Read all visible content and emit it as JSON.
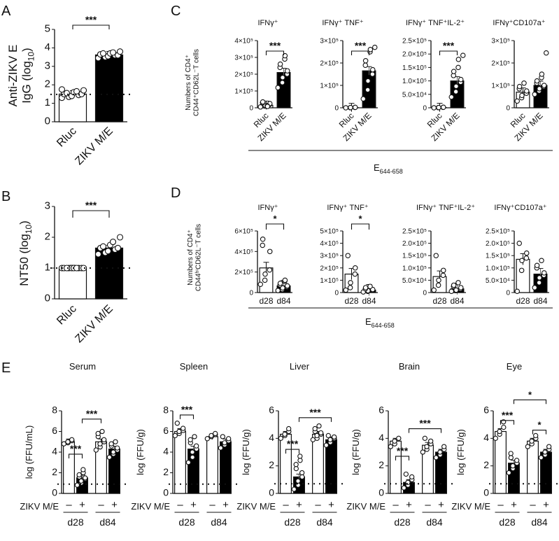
{
  "figure": {
    "panel_letters": [
      "A",
      "B",
      "C",
      "D",
      "E"
    ],
    "epitope_label": "E",
    "epitope_sub": "644-658",
    "sig3": "***",
    "sig1": "*",
    "row_label": "ZIKV M/E",
    "minus": "–",
    "plus": "+",
    "day_labels": [
      "d28",
      "d84"
    ]
  },
  "chart_data": [
    {
      "id": "A",
      "type": "bar",
      "ylabel_main": "Anti-ZIKV E",
      "ylabel_sub": "IgG (log",
      "ylabel_subscript": "10",
      "ylabel_close": ")",
      "categories": [
        "Rluc",
        "ZIKV M/E"
      ],
      "values": [
        1.5,
        3.62
      ],
      "filled": [
        false,
        true
      ],
      "points": [
        [
          1.3,
          1.35,
          1.4,
          1.45,
          1.5,
          1.5,
          1.55,
          1.6,
          1.65,
          1.7,
          1.75
        ],
        [
          3.45,
          3.5,
          3.55,
          3.6,
          3.6,
          3.65,
          3.7,
          3.7,
          3.75,
          3.8
        ]
      ],
      "ylim": [
        0,
        5
      ],
      "yticks": [
        "0",
        "1",
        "2",
        "3",
        "4",
        "5"
      ],
      "ytick_values": [
        0,
        1,
        2,
        3,
        4,
        5
      ],
      "dotted_line": 1.48,
      "sig": "***"
    },
    {
      "id": "B",
      "type": "bar",
      "ylabel_main": "NT50 (log",
      "ylabel_subscript": "10",
      "ylabel_close": ")",
      "categories": [
        "Rluc",
        "ZIKV M/E"
      ],
      "values": [
        1.0,
        1.65
      ],
      "filled": [
        false,
        true
      ],
      "points": [
        [
          1.0,
          1.0,
          1.0,
          1.0,
          1.0,
          1.0,
          1.0,
          1.0,
          1.0,
          1.0
        ],
        [
          1.45,
          1.5,
          1.55,
          1.6,
          1.65,
          1.65,
          1.7,
          1.75,
          1.85,
          2.0
        ]
      ],
      "ylim": [
        0,
        3
      ],
      "yticks": [
        "0",
        "1",
        "2",
        "3"
      ],
      "ytick_values": [
        0,
        1,
        2,
        3
      ],
      "dotted_line": 1.0,
      "sig": "***"
    },
    {
      "id": "C",
      "type": "bar",
      "group": "C",
      "shared_ylabel_1": "Numbers of CD4⁺",
      "shared_ylabel_2": "CD44⁺CD62L⁻T cells",
      "panels": [
        {
          "title": "IFNγ⁺",
          "categories": [
            "Rluc",
            "ZIKV M/E"
          ],
          "values": [
            15000,
            210000
          ],
          "filled": [
            false,
            true
          ],
          "points": [
            [
              5000,
              10000,
              15000,
              20000,
              25000,
              30000,
              35000,
              12000,
              8000
            ],
            [
              120000,
              150000,
              180000,
              200000,
              220000,
              240000,
              260000,
              290000,
              310000
            ]
          ],
          "ylim": [
            0,
            400000
          ],
          "ytick_values": [
            0,
            100000,
            200000,
            300000,
            400000
          ],
          "yticks": [
            "0",
            "1×10⁵",
            "2×10⁵",
            "3×10⁵",
            "4×10⁵"
          ],
          "sig": "***"
        },
        {
          "title": "IFNγ⁺ TNF⁺",
          "categories": [
            "Rluc",
            "ZIKV M/E"
          ],
          "values": [
            1000,
            165000
          ],
          "filled": [
            false,
            true
          ],
          "points": [
            [
              0,
              500,
              1000,
              1500,
              2000
            ],
            [
              40000,
              80000,
              120000,
              150000,
              170000,
              190000,
              210000,
              250000,
              260000,
              270000
            ]
          ],
          "ylim": [
            0,
            300000
          ],
          "ytick_values": [
            0,
            100000,
            200000,
            300000
          ],
          "yticks": [
            "0",
            "1×10⁵",
            "2×10⁵",
            "3×10⁵"
          ],
          "sig": "***"
        },
        {
          "title": "IFNγ⁺ TNF⁺IL-2⁺",
          "categories": [
            "Rluc",
            "ZIKV M/E"
          ],
          "values": [
            1000,
            100000
          ],
          "filled": [
            false,
            true
          ],
          "points": [
            [
              0,
              500,
              1000,
              1500,
              2000
            ],
            [
              40000,
              60000,
              80000,
              95000,
              105000,
              120000,
              135000,
              150000,
              180000,
              195000
            ]
          ],
          "ylim": [
            0,
            250000
          ],
          "ytick_values": [
            0,
            50000,
            100000,
            150000,
            200000,
            250000
          ],
          "yticks": [
            "0",
            "5.0×10⁴",
            "1.0×10⁵",
            "1.5×10⁵",
            "2.0×10⁵",
            "2.5×10⁵"
          ],
          "sig": "***"
        },
        {
          "title": "IFNγ⁺CD107a⁺",
          "categories": [
            "Rluc",
            "ZIKV M/E"
          ],
          "values": [
            70000,
            100000
          ],
          "filled": [
            false,
            true
          ],
          "points": [
            [
              30000,
              45000,
              55000,
              65000,
              75000,
              85000,
              95000,
              110000
            ],
            [
              60000,
              75000,
              85000,
              95000,
              100000,
              110000,
              120000,
              135000,
              150000,
              245000
            ]
          ],
          "ylim": [
            0,
            300000
          ],
          "ytick_values": [
            0,
            100000,
            200000,
            300000
          ],
          "yticks": [
            "0",
            "1×10⁵",
            "2×10⁵",
            "3×10⁵"
          ],
          "sig": ""
        }
      ]
    },
    {
      "id": "D",
      "type": "bar",
      "group": "D",
      "shared_ylabel_1": "Numbers of CD4⁺",
      "shared_ylabel_2": "CD44ʰⁱCD62L⁻T cells",
      "panels": [
        {
          "title": "IFNγ⁺",
          "categories": [
            "d28",
            "d84"
          ],
          "values": [
            240000,
            65000
          ],
          "filled": [
            false,
            true
          ],
          "points": [
            [
              80000,
              120000,
              180000,
              220000,
              400000,
              460000,
              520000
            ],
            [
              20000,
              30000,
              45000,
              55000,
              65000,
              75000,
              90000,
              110000,
              120000
            ]
          ],
          "ylim": [
            0,
            600000
          ],
          "ytick_values": [
            0,
            200000,
            400000,
            600000
          ],
          "yticks": [
            "0",
            "2×10⁵",
            "4×10⁵",
            "6×10⁵"
          ],
          "sig": "*"
        },
        {
          "title": "IFNγ⁺ TNF⁺",
          "categories": [
            "d28",
            "d84"
          ],
          "values": [
            150000,
            20000
          ],
          "filled": [
            false,
            true
          ],
          "points": [
            [
              20000,
              40000,
              80000,
              150000,
              200000,
              300000
            ],
            [
              5000,
              10000,
              15000,
              20000,
              25000,
              30000,
              40000,
              50000
            ]
          ],
          "ylim": [
            0,
            500000
          ],
          "ytick_values": [
            0,
            100000,
            200000,
            300000,
            400000,
            500000
          ],
          "yticks": [
            "0",
            "1×10⁵",
            "2×10⁵",
            "3×10⁵",
            "4×10⁵",
            "5×10⁵"
          ],
          "sig": "*"
        },
        {
          "title": "IFNγ⁺ TNF⁺IL-2⁺",
          "categories": [
            "d28",
            "d84"
          ],
          "values": [
            65000,
            15000
          ],
          "filled": [
            false,
            true
          ],
          "points": [
            [
              10000,
              30000,
              50000,
              70000,
              90000,
              150000
            ],
            [
              5000,
              8000,
              10000,
              15000,
              20000,
              25000,
              30000,
              40000
            ]
          ],
          "ylim": [
            0,
            250000
          ],
          "ytick_values": [
            0,
            50000,
            100000,
            150000,
            200000,
            250000
          ],
          "yticks": [
            "0",
            "5.0×10⁴",
            "1.0×10⁵",
            "1.5×10⁵",
            "2.0×10⁵",
            "2.5×10⁵"
          ],
          "sig": ""
        },
        {
          "title": "IFNγ⁺CD107a⁺",
          "categories": [
            "d28",
            "d84"
          ],
          "values": [
            135000,
            75000
          ],
          "filled": [
            false,
            true
          ],
          "points": [
            [
              5000,
              90000,
              130000,
              140000,
              160000,
              200000
            ],
            [
              20000,
              40000,
              60000,
              70000,
              80000,
              100000,
              110000,
              130000
            ]
          ],
          "ylim": [
            0,
            250000
          ],
          "ytick_values": [
            0,
            50000,
            100000,
            150000,
            200000,
            250000
          ],
          "yticks": [
            "0",
            "5.0×10⁴",
            "1.0×10⁵",
            "1.5×10⁵",
            "2.0×10⁵",
            "2.5×10⁵"
          ],
          "sig": ""
        }
      ]
    },
    {
      "id": "E",
      "type": "bar",
      "group": "E",
      "panels": [
        {
          "title": "Serum",
          "ylabel": "log (FFU/mL)",
          "ylim": [
            0,
            8
          ],
          "ytick_values": [
            0,
            2,
            4,
            6,
            8
          ],
          "yticks": [
            "0",
            "2",
            "4",
            "6",
            "8"
          ],
          "values": [
            5.0,
            1.5,
            5.0,
            4.3
          ],
          "filled": [
            false,
            true,
            false,
            true
          ],
          "dotted_line": 0.9,
          "points": [
            [
              4.8,
              4.9,
              5.0,
              5.1,
              5.2
            ],
            [
              0.8,
              1.0,
              1.2,
              1.4,
              1.5,
              1.6,
              1.8,
              2.0,
              2.3
            ],
            [
              4.2,
              4.5,
              4.8,
              5.0,
              5.2,
              5.5,
              5.8,
              6.0
            ],
            [
              3.5,
              3.8,
              4.0,
              4.2,
              4.4,
              4.6,
              4.8,
              5.0
            ]
          ],
          "sigs": [
            {
              "from": 0,
              "to": 1,
              "label": "***",
              "level": 3.8
            },
            {
              "from": 1,
              "to": 2,
              "label": "***",
              "level": 7.2
            }
          ]
        },
        {
          "title": "Spleen",
          "ylabel": "log (FFU/g)",
          "ylim": [
            0,
            8
          ],
          "ytick_values": [
            0,
            2,
            4,
            6,
            8
          ],
          "yticks": [
            "0",
            "2",
            "4",
            "6",
            "8"
          ],
          "values": [
            6.0,
            4.3,
            5.5,
            5.0
          ],
          "filled": [
            false,
            true,
            false,
            true
          ],
          "dotted_line": 0.9,
          "points": [
            [
              5.6,
              5.8,
              6.0,
              6.1,
              6.3,
              6.8
            ],
            [
              3.0,
              3.5,
              4.0,
              4.3,
              4.6,
              4.9,
              5.2,
              5.5
            ],
            [
              5.3,
              5.5,
              5.6,
              5.7,
              5.8
            ],
            [
              4.4,
              4.7,
              4.9,
              5.1,
              5.3,
              5.5
            ]
          ],
          "sigs": [
            {
              "from": 0,
              "to": 1,
              "label": "***",
              "level": 7.6
            }
          ]
        },
        {
          "title": "Liver",
          "ylabel": "log (FFU/g)",
          "ylim": [
            0,
            6
          ],
          "ytick_values": [
            0,
            2,
            4,
            6
          ],
          "yticks": [
            "0",
            "2",
            "4",
            "6"
          ],
          "values": [
            4.3,
            1.2,
            4.3,
            3.9
          ],
          "filled": [
            false,
            true,
            false,
            true
          ],
          "dotted_line": 0.7,
          "points": [
            [
              4.0,
              4.2,
              4.3,
              4.5,
              4.7
            ],
            [
              0.3,
              0.6,
              0.9,
              1.2,
              1.5,
              1.8,
              2.1,
              2.4,
              2.7
            ],
            [
              3.9,
              4.0,
              4.2,
              4.3,
              4.4,
              4.5,
              4.7,
              4.9
            ],
            [
              3.5,
              3.7,
              3.9,
              4.0,
              4.1,
              4.2
            ]
          ],
          "sigs": [
            {
              "from": 0,
              "to": 1,
              "label": "***",
              "level": 3.2
            },
            {
              "from": 1,
              "to": 3,
              "label": "***",
              "level": 5.5
            }
          ]
        },
        {
          "title": "Brain",
          "ylabel": "log (FFU/g)",
          "ylim": [
            0,
            6
          ],
          "ytick_values": [
            0,
            2,
            4,
            6
          ],
          "yticks": [
            "0",
            "2",
            "4",
            "6"
          ],
          "values": [
            3.8,
            0.8,
            3.5,
            3.0
          ],
          "filled": [
            false,
            true,
            false,
            true
          ],
          "dotted_line": 0.7,
          "points": [
            [
              3.4,
              3.6,
              3.8,
              4.0
            ],
            [
              0.4,
              0.6,
              0.8,
              1.0,
              1.2,
              1.4
            ],
            [
              3.0,
              3.2,
              3.4,
              3.6,
              3.8,
              4.0
            ],
            [
              2.6,
              2.8,
              3.0,
              3.2,
              3.4
            ]
          ],
          "sigs": [
            {
              "from": 0,
              "to": 1,
              "label": "***",
              "level": 2.7
            },
            {
              "from": 1,
              "to": 3,
              "label": "***",
              "level": 4.7
            }
          ]
        },
        {
          "title": "Eye",
          "ylabel": "log (FFU/g)",
          "ylim": [
            0,
            6
          ],
          "ytick_values": [
            0,
            2,
            4,
            6
          ],
          "yticks": [
            "0",
            "2",
            "4",
            "6"
          ],
          "values": [
            4.5,
            2.2,
            3.8,
            3.0
          ],
          "filled": [
            false,
            true,
            false,
            true
          ],
          "dotted_line": 0.7,
          "points": [
            [
              4.0,
              4.3,
              4.5,
              4.8,
              5.2
            ],
            [
              1.5,
              1.8,
              2.0,
              2.2,
              2.4,
              2.6,
              2.9
            ],
            [
              3.4,
              3.6,
              3.8,
              4.0,
              4.2
            ],
            [
              2.6,
              2.8,
              3.0,
              3.2,
              3.4
            ]
          ],
          "sigs": [
            {
              "from": 0,
              "to": 1,
              "label": "***",
              "level": 5.3
            },
            {
              "from": 1,
              "to": 3,
              "label": "*",
              "level": 6.8
            },
            {
              "from": 2,
              "to": 3,
              "label": "*",
              "level": 4.6
            }
          ]
        }
      ]
    }
  ]
}
